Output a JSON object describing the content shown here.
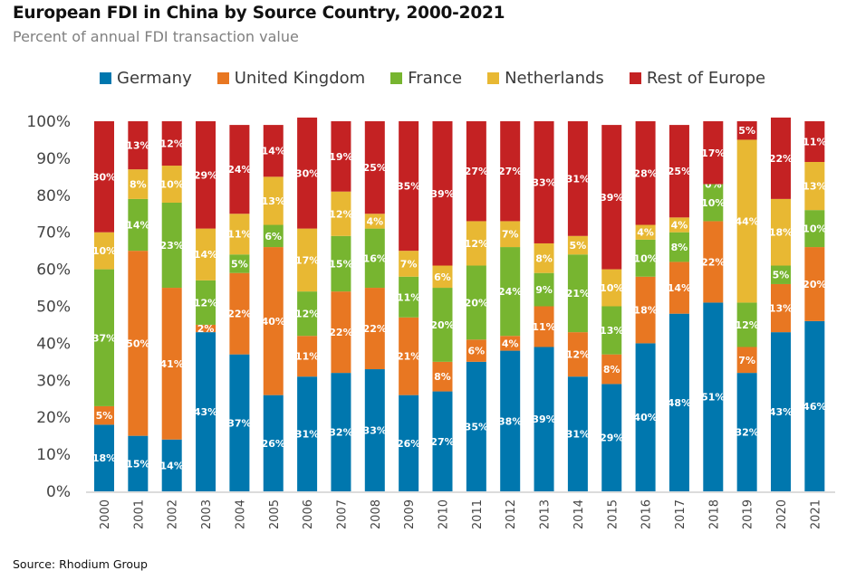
{
  "chart_data": {
    "type": "bar",
    "stacked": true,
    "title": "European FDI in China by Source Country, 2000-2021",
    "subtitle": "Percent of annual FDI transaction value",
    "xlabel": "",
    "ylabel": "",
    "ylim": [
      0,
      100
    ],
    "yticks": [
      "0%",
      "10%",
      "20%",
      "30%",
      "40%",
      "50%",
      "60%",
      "70%",
      "80%",
      "90%",
      "100%"
    ],
    "legend_position": "top",
    "grid": false,
    "source": "Source: Rhodium Group",
    "categories": [
      "2000",
      "2001",
      "2002",
      "2003",
      "2004",
      "2005",
      "2006",
      "2007",
      "2008",
      "2009",
      "2010",
      "2011",
      "2012",
      "2013",
      "2014",
      "2015",
      "2016",
      "2017",
      "2018",
      "2019",
      "2020",
      "2021"
    ],
    "series": [
      {
        "name": "Germany",
        "color": "#0077AE",
        "values": [
          18,
          15,
          14,
          43,
          37,
          26,
          31,
          32,
          33,
          26,
          27,
          35,
          38,
          39,
          31,
          29,
          40,
          48,
          51,
          32,
          43,
          46
        ]
      },
      {
        "name": "United Kingdom",
        "color": "#E87722",
        "values": [
          5,
          50,
          41,
          2,
          22,
          40,
          11,
          22,
          22,
          21,
          8,
          6,
          4,
          11,
          12,
          8,
          18,
          14,
          22,
          7,
          13,
          20
        ]
      },
      {
        "name": "France",
        "color": "#77B530",
        "values": [
          37,
          14,
          23,
          12,
          5,
          6,
          12,
          15,
          16,
          11,
          20,
          20,
          24,
          9,
          21,
          13,
          10,
          8,
          10,
          12,
          5,
          10
        ]
      },
      {
        "name": "Netherlands",
        "color": "#E8B833",
        "values": [
          10,
          8,
          10,
          14,
          11,
          13,
          17,
          12,
          4,
          7,
          6,
          12,
          7,
          8,
          5,
          10,
          4,
          4,
          0,
          44,
          18,
          13
        ]
      },
      {
        "name": "Rest of Europe",
        "color": "#C42223",
        "values": [
          30,
          13,
          12,
          29,
          24,
          14,
          30,
          19,
          25,
          35,
          39,
          27,
          27,
          33,
          31,
          39,
          28,
          25,
          17,
          5,
          22,
          11
        ]
      }
    ]
  }
}
